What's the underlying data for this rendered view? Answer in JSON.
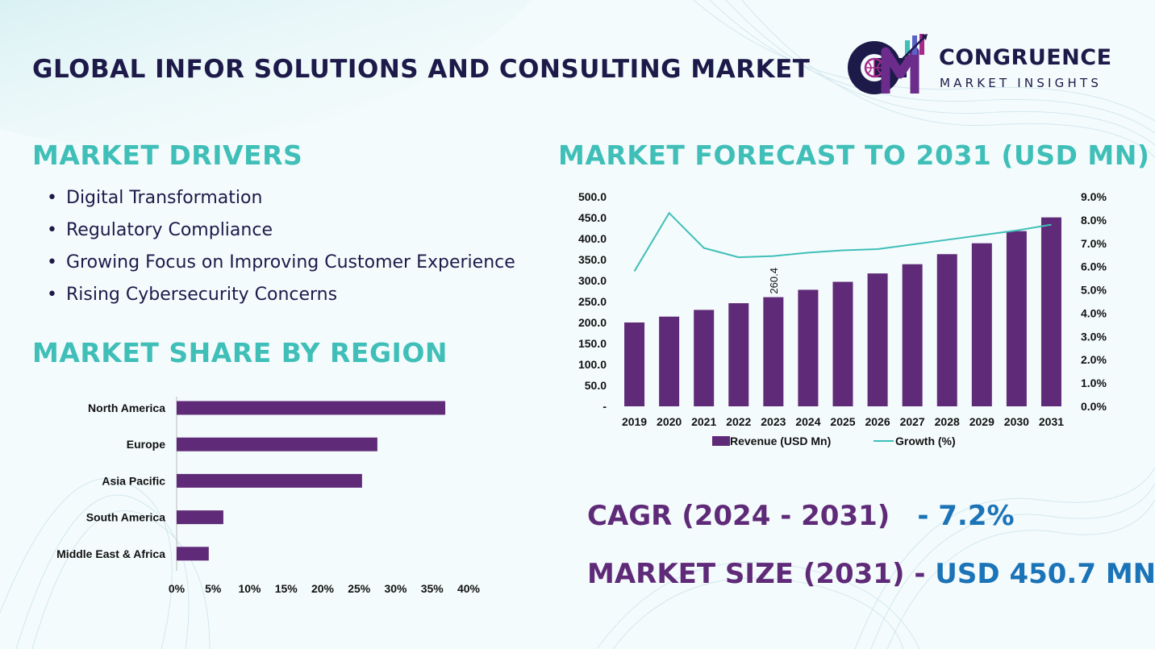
{
  "header": {
    "title": "GLOBAL INFOR SOLUTIONS AND CONSULTING MARKET"
  },
  "logo": {
    "initials": "CM",
    "name": "CONGRUENCE",
    "subtitle": "MARKET INSIGHTS"
  },
  "colors": {
    "purple": "#5f2b79",
    "teal": "#3fbfb8",
    "navy": "#1d1a4a",
    "blue": "#1c74b8"
  },
  "drivers": {
    "heading": "MARKET DRIVERS",
    "items": [
      "Digital Transformation",
      "Regulatory Compliance",
      "Growing Focus on Improving Customer Experience",
      "Rising Cybersecurity Concerns"
    ]
  },
  "region": {
    "heading": "MARKET SHARE BY REGION"
  },
  "forecast": {
    "heading": "MARKET FORECAST TO 2031 (USD MN)"
  },
  "stats": {
    "cagr_label": "CAGR (2024 - 2031)",
    "cagr_value": "- 7.2%",
    "size_label": "MARKET SIZE (2031)",
    "size_sep": " - ",
    "size_value": "USD 450.7 MN"
  },
  "chart_data": [
    {
      "type": "bar",
      "orientation": "horizontal",
      "categories": [
        "North America",
        "Europe",
        "Asia Pacific",
        "South America",
        "Middle East & Africa"
      ],
      "values": [
        36.8,
        27.5,
        25.4,
        6.4,
        4.4
      ],
      "xlim": [
        0,
        40
      ],
      "xticks": [
        "0%",
        "5%",
        "10%",
        "15%",
        "20%",
        "25%",
        "30%",
        "35%",
        "40%"
      ],
      "grid": false
    },
    {
      "type": "bar",
      "categories": [
        "2019",
        "2020",
        "2021",
        "2022",
        "2023",
        "2024",
        "2025",
        "2026",
        "2027",
        "2028",
        "2029",
        "2030",
        "2031"
      ],
      "series": [
        {
          "name": "Revenue (USD Mn)",
          "axis": "left",
          "type": "bar",
          "values": [
            200,
            214,
            230,
            246,
            260.4,
            278,
            297,
            317,
            339,
            363,
            389,
            418,
            450.7
          ]
        },
        {
          "name": "Growth (%)",
          "axis": "right",
          "type": "line",
          "values": [
            5.8,
            8.3,
            6.8,
            6.4,
            6.45,
            6.6,
            6.7,
            6.75,
            6.95,
            7.15,
            7.35,
            7.55,
            7.8
          ]
        }
      ],
      "data_labels": [
        {
          "category": "2023",
          "text": "260.4"
        }
      ],
      "ylim_left": [
        0,
        500
      ],
      "yticks_left": [
        "-",
        "50.0",
        "100.0",
        "150.0",
        "200.0",
        "250.0",
        "300.0",
        "350.0",
        "400.0",
        "450.0",
        "500.0"
      ],
      "ylim_right": [
        0,
        9
      ],
      "yticks_right": [
        "0.0%",
        "1.0%",
        "2.0%",
        "3.0%",
        "4.0%",
        "5.0%",
        "6.0%",
        "7.0%",
        "8.0%",
        "9.0%"
      ],
      "legend": "bottom",
      "grid": false
    }
  ]
}
